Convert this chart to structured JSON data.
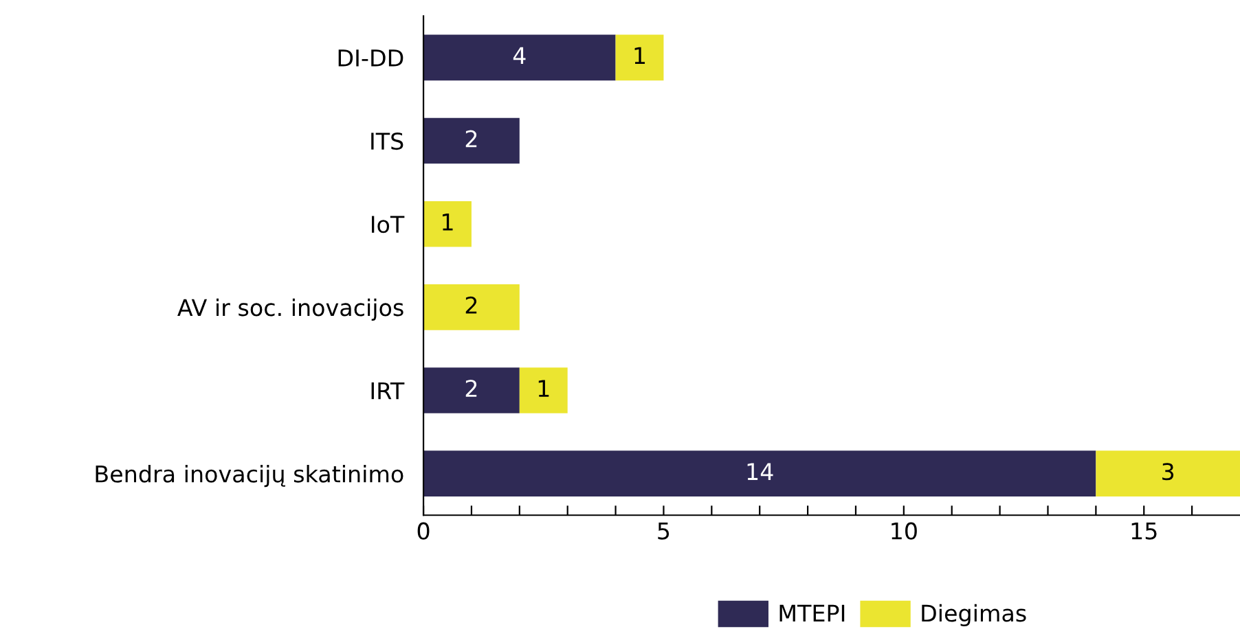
{
  "chart_data": {
    "type": "bar",
    "orientation": "horizontal",
    "stacked": true,
    "categories": [
      "DI-DD",
      "ITS",
      "IoT",
      "AV ir soc. inovacijos",
      "IRT",
      "Bendra inovacijų skatinimo"
    ],
    "series": [
      {
        "name": "MTEPI",
        "color": "#2f2a55",
        "values": [
          4,
          2,
          null,
          null,
          2,
          14
        ],
        "value_labels": [
          "4",
          "2",
          null,
          null,
          "2",
          "14"
        ]
      },
      {
        "name": "Diegimas",
        "color": "#ebe530",
        "values": [
          1,
          null,
          1,
          2,
          1,
          3
        ],
        "value_labels": [
          "1",
          null,
          "1",
          "2",
          "1",
          "3"
        ]
      }
    ],
    "xlim": [
      0,
      17
    ],
    "xticks": [
      0,
      {
        "value": 1,
        "label": null
      },
      {
        "value": 2,
        "label": null
      },
      {
        "value": 3,
        "label": null
      },
      {
        "value": 4,
        "label": null
      },
      5,
      {
        "value": 6,
        "label": null
      },
      {
        "value": 7,
        "label": null
      },
      {
        "value": 8,
        "label": null
      },
      {
        "value": 9,
        "label": null
      },
      10,
      {
        "value": 11,
        "label": null
      },
      {
        "value": 12,
        "label": null
      },
      {
        "value": 13,
        "label": null
      },
      {
        "value": 14,
        "label": null
      },
      15,
      {
        "value": 16,
        "label": null
      }
    ],
    "grid": false,
    "legend": "bottom"
  }
}
